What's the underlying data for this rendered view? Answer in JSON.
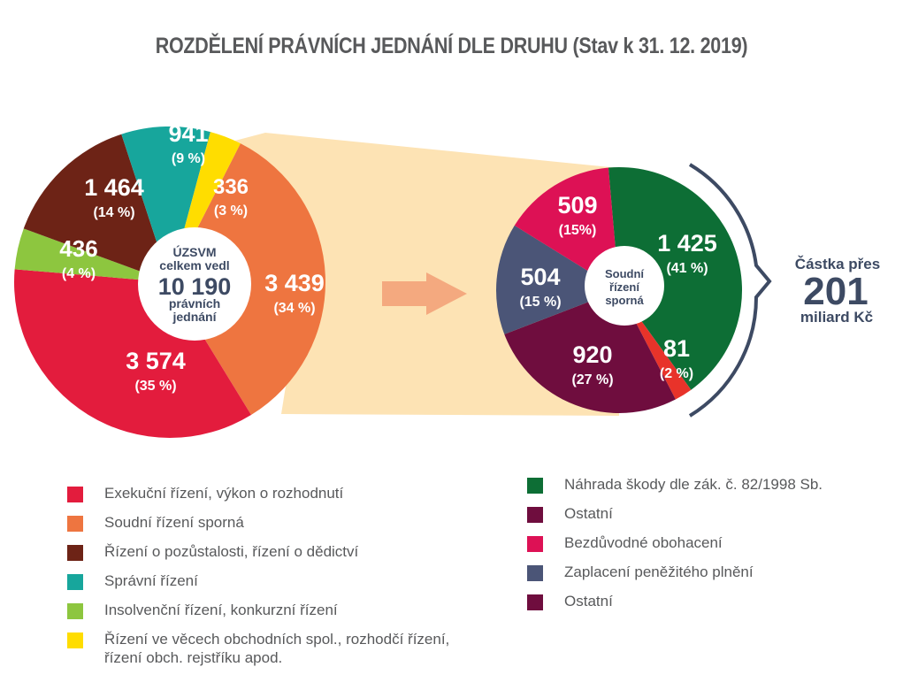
{
  "title": "ROZDĚLENÍ PRÁVNÍCH JEDNÁNÍ DLE DRUHU (Stav k 31. 12. 2019)",
  "chart_data": [
    {
      "type": "pie",
      "center_label": [
        "ÚZSVM",
        "celkem vedl",
        "10 190",
        "právních",
        "jednání"
      ],
      "total": 10190,
      "slices": [
        {
          "value": 3439,
          "percent": 34,
          "value_label": "3 439",
          "percent_label": "(34 %)",
          "color": "#ee7540",
          "legend": "Soudní řízení sporná"
        },
        {
          "value": 3574,
          "percent": 35,
          "value_label": "3 574",
          "percent_label": "(35 %)",
          "color": "#e31c3d",
          "legend": "Exekuční řízení, výkon o rozhodnutí"
        },
        {
          "value": 436,
          "percent": 4,
          "value_label": "436",
          "percent_label": "(4 %)",
          "color": "#8dc63f",
          "legend": "Insolvenční řízení, konkurzní řízení"
        },
        {
          "value": 1464,
          "percent": 14,
          "value_label": "1 464",
          "percent_label": "(14 %)",
          "color": "#6d2316",
          "legend": "Řízení o pozůstalosti, řízení o dědictví"
        },
        {
          "value": 941,
          "percent": 9,
          "value_label": "941",
          "percent_label": "(9 %)",
          "color": "#17a69c",
          "legend": "Správní řízení"
        },
        {
          "value": 336,
          "percent": 3,
          "value_label": "336",
          "percent_label": "(3 %)",
          "color": "#ffdd00",
          "legend": "Řízení ve věcech obchodních spol., rozhodčí řízení,\nřízení obch. rejstříku apod."
        }
      ]
    },
    {
      "type": "pie",
      "center_label": [
        "Soudní",
        "řízení",
        "sporná"
      ],
      "slices": [
        {
          "value": 1425,
          "percent": 41,
          "value_label": "1 425",
          "percent_label": "(41 %)",
          "color": "#0d6e35",
          "legend": "Náhrada škody dle zák. č. 82/1998 Sb."
        },
        {
          "value": 81,
          "percent": 2,
          "value_label": "81",
          "percent_label": "(2 %)",
          "color": "#e8332a",
          "legend": "Ostatní"
        },
        {
          "value": 920,
          "percent": 27,
          "value_label": "920",
          "percent_label": "(27 %)",
          "color": "#6f0d3e",
          "legend": "Ostatní"
        },
        {
          "value": 504,
          "percent": 15,
          "value_label": "504",
          "percent_label": "(15 %)",
          "color": "#4b5577",
          "legend": "Zaplacení peněžitého plnění"
        },
        {
          "value": 509,
          "percent": 15,
          "value_label": "509",
          "percent_label": "(15%)",
          "color": "#dd1155",
          "legend": "Bezdůvodné obohacení"
        }
      ],
      "callout": [
        "Částka přes",
        "201",
        "miliard Kč"
      ]
    }
  ],
  "legend_left": [
    {
      "label": "Exekuční řízení, výkon o rozhodnutí",
      "color": "#e31c3d"
    },
    {
      "label": "Soudní řízení sporná",
      "color": "#ee7540"
    },
    {
      "label": "Řízení o pozůstalosti, řízení o dědictví",
      "color": "#6d2316"
    },
    {
      "label": "Správní řízení",
      "color": "#17a69c"
    },
    {
      "label": "Insolvenční řízení, konkurzní řízení",
      "color": "#8dc63f"
    },
    {
      "label": "Řízení ve věcech obchodních spol., rozhodčí řízení,\nřízení obch. rejstříku apod.",
      "color": "#ffdd00"
    }
  ],
  "legend_right": [
    {
      "label": "Náhrada škody dle zák. č. 82/1998 Sb.",
      "color": "#0d6e35"
    },
    {
      "label": "Ostatní",
      "color": "#6f0d3e"
    },
    {
      "label": "Bezdůvodné obohacení",
      "color": "#dd1155"
    },
    {
      "label": "Zaplacení peněžitého plnění",
      "color": "#4b5577"
    },
    {
      "label": "Ostatní",
      "color": "#6f0d3e"
    }
  ],
  "colors": {
    "title": "#58595b",
    "connector": "#fde3b4",
    "arrow": "#f4a97f",
    "bracket": "#3d4a63",
    "callout_text": "#3d4a63",
    "center_text": "#3d4a63"
  }
}
